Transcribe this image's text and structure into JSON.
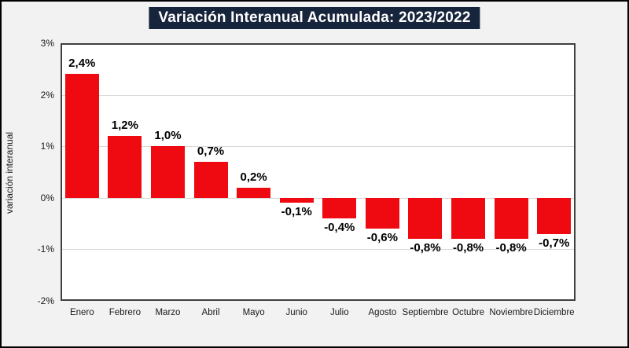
{
  "title": "Variación Interanual Acumulada: 2023/2022",
  "colors": {
    "bar": "#ee0a10",
    "title_background": "#16243c",
    "title_text": "#ffffff",
    "page_background": "#f2f2f2",
    "plot_background": "#ffffff",
    "plot_border": "#404040",
    "gridline": "#d9d9d9",
    "text": "#1a1a1a"
  },
  "chart_data": {
    "type": "bar",
    "title": "Variación Interanual Acumulada: 2023/2022",
    "categories": [
      "Enero",
      "Febrero",
      "Marzo",
      "Abril",
      "Mayo",
      "Junio",
      "Julio",
      "Agosto",
      "Septiembre",
      "Octubre",
      "Noviembre",
      "Diciembre"
    ],
    "values": [
      2.4,
      1.2,
      1.0,
      0.7,
      0.2,
      -0.1,
      -0.4,
      -0.6,
      -0.8,
      -0.8,
      -0.8,
      -0.7
    ],
    "data_labels": [
      "2,4%",
      "1,2%",
      "1,0%",
      "0,7%",
      "0,2%",
      "-0,1%",
      "-0,4%",
      "-0,6%",
      "-0,8%",
      "-0,8%",
      "-0,8%",
      "-0,7%"
    ],
    "xlabel": "",
    "ylabel": "variación interanual",
    "ylim": [
      -2,
      3
    ],
    "yticks": [
      3,
      2,
      1,
      0,
      -1,
      -2
    ],
    "ytick_labels": [
      "3%",
      "2%",
      "1%",
      "0%",
      "-1%",
      "-2%"
    ],
    "grid": true,
    "legend": false,
    "bar_color": "#ee0a10"
  }
}
